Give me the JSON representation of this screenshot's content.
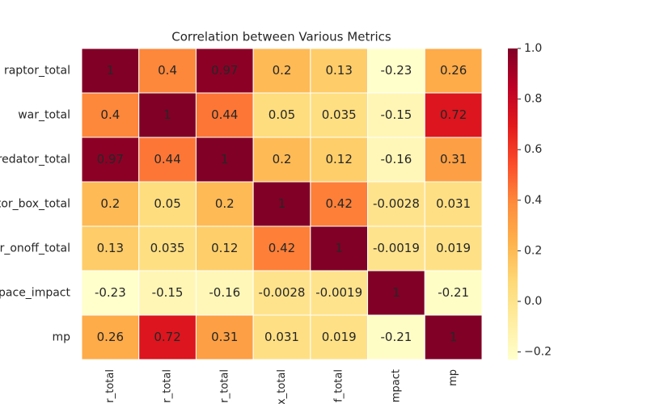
{
  "chart_data": {
    "type": "heatmap",
    "title": "Correlation between Various Metrics",
    "row_labels": [
      "raptor_total",
      "war_total",
      "oredator_total",
      "tor_box_total",
      "or_onoff_total",
      "pace_impact",
      "mp"
    ],
    "column_labels": [
      "r_total",
      "r_total",
      "r_total",
      "x_total",
      "f_total",
      "mpact",
      "mp"
    ],
    "values": [
      [
        1,
        0.4,
        0.97,
        0.2,
        0.13,
        -0.23,
        0.26
      ],
      [
        0.4,
        1,
        0.44,
        0.05,
        0.035,
        -0.15,
        0.72
      ],
      [
        0.97,
        0.44,
        1,
        0.2,
        0.12,
        -0.16,
        0.31
      ],
      [
        0.2,
        0.05,
        0.2,
        1,
        0.42,
        -0.0028,
        0.031
      ],
      [
        0.13,
        0.035,
        0.12,
        0.42,
        1,
        -0.0019,
        0.019
      ],
      [
        -0.23,
        -0.15,
        -0.16,
        -0.0028,
        -0.0019,
        1,
        -0.21
      ],
      [
        0.26,
        0.72,
        0.31,
        0.031,
        0.019,
        -0.21,
        1
      ]
    ],
    "colormap": [
      "#ffffcc",
      "#ffeda0",
      "#fed976",
      "#feb24c",
      "#fd8d3c",
      "#fc4e2a",
      "#e31a1c",
      "#bd0026",
      "#800026"
    ],
    "clim": [
      -0.23,
      1
    ],
    "cticks": [
      {
        "value": 1.0,
        "label": "1.0"
      },
      {
        "value": 0.8,
        "label": "0.8"
      },
      {
        "value": 0.6,
        "label": "0.6"
      },
      {
        "value": 0.4,
        "label": "0.4"
      },
      {
        "value": 0.2,
        "label": "0.2"
      },
      {
        "value": 0.0,
        "label": "0.0"
      },
      {
        "value": -0.2,
        "label": "−0.2"
      }
    ]
  }
}
